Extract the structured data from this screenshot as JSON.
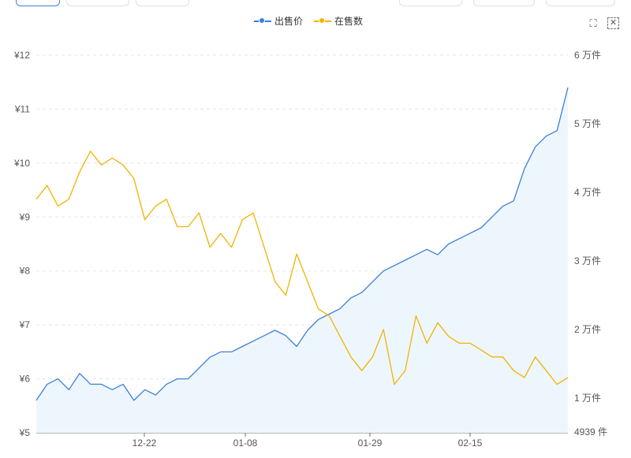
{
  "colors": {
    "price": "#3a7fd8",
    "stock": "#f0b400",
    "price_fill": "#eef6fd",
    "grid": "#e3e6ea",
    "axis_text": "#555555"
  },
  "toolbar": {
    "zoom_icon": "zoom-select-icon",
    "reset_icon": "zoom-reset-icon"
  },
  "chart_data": {
    "type": "line",
    "legend_position": "top-center",
    "grid": true,
    "x_ticks": [
      "12-22",
      "01-08",
      "01-29",
      "02-15"
    ],
    "y_left": {
      "ticks": [
        "¥12",
        "¥11",
        "¥10",
        "¥9",
        "¥8",
        "¥7",
        "¥6",
        "¥5"
      ],
      "range": [
        5,
        12
      ]
    },
    "y_right": {
      "ticks": [
        "6 万件",
        "5 万件",
        "4 万件",
        "3 万件",
        "2 万件",
        "1 万件",
        "4939 件"
      ],
      "range": [
        4939,
        60000
      ]
    },
    "series": [
      {
        "name": "出售价",
        "axis": "left",
        "area": true,
        "values": [
          5.6,
          5.9,
          6.0,
          5.8,
          6.1,
          5.9,
          5.9,
          5.8,
          5.9,
          5.6,
          5.8,
          5.7,
          5.9,
          6.0,
          6.0,
          6.2,
          6.4,
          6.5,
          6.5,
          6.6,
          6.7,
          6.8,
          6.9,
          6.8,
          6.6,
          6.9,
          7.1,
          7.2,
          7.3,
          7.5,
          7.6,
          7.8,
          8.0,
          8.1,
          8.2,
          8.3,
          8.4,
          8.3,
          8.5,
          8.6,
          8.7,
          8.8,
          9.0,
          9.2,
          9.3,
          9.9,
          10.3,
          10.5,
          10.6,
          11.4
        ]
      },
      {
        "name": "在售数",
        "axis": "right",
        "area": false,
        "values": [
          39000,
          41000,
          38000,
          39000,
          43000,
          46000,
          44000,
          45000,
          44000,
          42000,
          36000,
          38000,
          39000,
          35000,
          35000,
          37000,
          32000,
          34000,
          32000,
          36000,
          37000,
          32000,
          27000,
          25000,
          31000,
          27000,
          23000,
          22000,
          19000,
          16000,
          14000,
          16000,
          20000,
          12000,
          14000,
          22000,
          18000,
          21000,
          19000,
          18000,
          18000,
          17000,
          16000,
          16000,
          14000,
          13000,
          16000,
          14000,
          12000,
          13000
        ]
      }
    ]
  }
}
